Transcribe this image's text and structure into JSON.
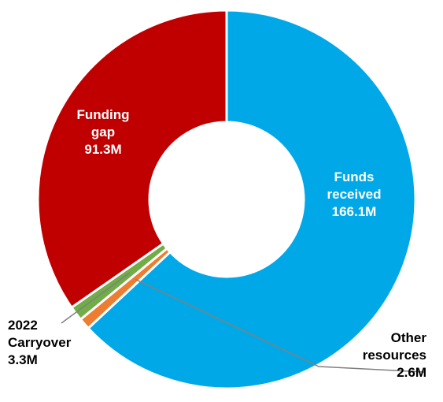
{
  "chart_data": {
    "type": "pie",
    "variant": "donut",
    "title": "",
    "slices": [
      {
        "key": "funds_received",
        "value": 166.1,
        "color": "#00A8E8",
        "label_lines": [
          "Funds",
          "received",
          "166.1M"
        ],
        "label_color": "#ffffff"
      },
      {
        "key": "other_resources",
        "value": 2.6,
        "color": "#ED7D31",
        "label_lines": [
          "Other",
          "resources",
          "2.6M"
        ],
        "label_color": "#000000"
      },
      {
        "key": "carryover_2022",
        "value": 3.3,
        "color": "#70AD47",
        "label_lines": [
          "2022",
          "Carryover",
          "3.3M"
        ],
        "label_color": "#000000"
      },
      {
        "key": "funding_gap",
        "value": 91.3,
        "color": "#C00000",
        "label_lines": [
          "Funding",
          "gap",
          "91.3M"
        ],
        "label_color": "#ffffff"
      }
    ],
    "legend": "none"
  }
}
